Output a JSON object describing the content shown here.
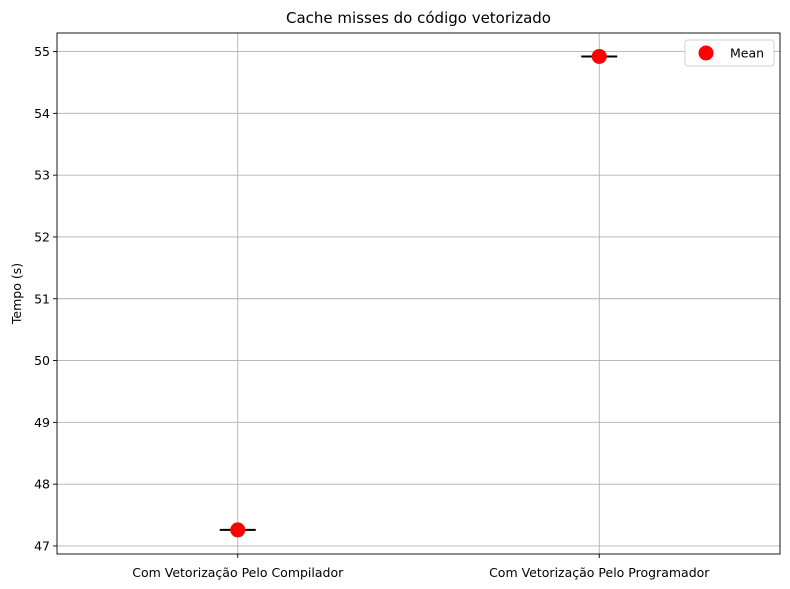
{
  "chart_data": {
    "type": "box",
    "title": "Cache misses do código vetorizado",
    "xlabel": "",
    "ylabel": "Tempo  (s)",
    "categories": [
      "Com Vetorização Pelo Compilador",
      "Com Vetorização Pelo Programador"
    ],
    "medians": [
      47.26,
      54.92
    ],
    "means": [
      47.26,
      54.92
    ],
    "mean_label": "Mean",
    "ylim": [
      46.87,
      55.3
    ],
    "yticks": [
      47,
      48,
      49,
      50,
      51,
      52,
      53,
      54,
      55
    ],
    "grid": true,
    "legend_position": "top-right",
    "colors": {
      "mean_marker": "#ff0000",
      "median_line": "#000000",
      "grid": "#b0b0b0"
    }
  }
}
